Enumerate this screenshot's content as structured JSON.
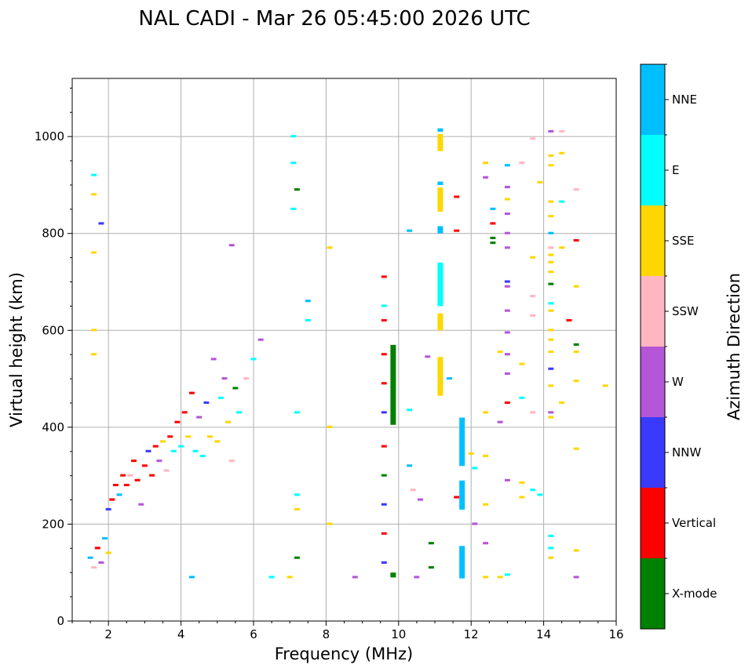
{
  "chart_data": {
    "type": "scatter",
    "title": "NAL CADI - Mar 26 05:45:00 2026 UTC",
    "xlabel": "Frequency (MHz)",
    "ylabel": "Virtual height (km)",
    "xlim": [
      1,
      16
    ],
    "ylim": [
      0,
      1120
    ],
    "xticks": [
      2,
      4,
      6,
      8,
      10,
      12,
      14,
      16
    ],
    "yticks": [
      0,
      200,
      400,
      600,
      800,
      1000
    ],
    "grid": true,
    "colorbar": {
      "label": "Azimuth Direction",
      "categories": [
        {
          "name": "X-mode",
          "color": "#008000"
        },
        {
          "name": "Vertical",
          "color": "#ff0000"
        },
        {
          "name": "NNW",
          "color": "#3a3aff"
        },
        {
          "name": "W",
          "color": "#b556d8"
        },
        {
          "name": "SSW",
          "color": "#ffb6c1"
        },
        {
          "name": "SSE",
          "color": "#ffd700"
        },
        {
          "name": "E",
          "color": "#00ffff"
        },
        {
          "name": "NNE",
          "color": "#00bfff"
        }
      ]
    },
    "cell_size": {
      "freq_mhz": 0.05,
      "height_km": 5
    },
    "columns": [
      {
        "name": "X-mode",
        "freq": 9.85,
        "h0": 405,
        "h1": 570
      },
      {
        "name": "X-mode",
        "freq": 9.85,
        "h0": 90,
        "h1": 100
      },
      {
        "name": "NNE",
        "freq": 11.75,
        "h0": 88,
        "h1": 155
      },
      {
        "name": "NNE",
        "freq": 11.75,
        "h0": 230,
        "h1": 290
      },
      {
        "name": "NNE",
        "freq": 11.75,
        "h0": 320,
        "h1": 420
      },
      {
        "name": "E",
        "freq": 11.15,
        "h0": 650,
        "h1": 740
      },
      {
        "name": "SSE",
        "freq": 11.15,
        "h0": 465,
        "h1": 545
      },
      {
        "name": "SSE",
        "freq": 11.15,
        "h0": 600,
        "h1": 635
      },
      {
        "name": "SSE",
        "freq": 11.15,
        "h0": 845,
        "h1": 895
      },
      {
        "name": "SSE",
        "freq": 11.15,
        "h0": 970,
        "h1": 1005
      },
      {
        "name": "NNE",
        "freq": 11.15,
        "h0": 800,
        "h1": 815
      },
      {
        "name": "NNE",
        "freq": 11.15,
        "h0": 900,
        "h1": 907
      },
      {
        "name": "NNE",
        "freq": 11.15,
        "h0": 1010,
        "h1": 1017
      }
    ],
    "trace_points": [
      {
        "freq": 1.5,
        "height": 130,
        "name": "NNE"
      },
      {
        "freq": 1.6,
        "height": 110,
        "name": "SSW"
      },
      {
        "freq": 1.7,
        "height": 150,
        "name": "Vertical"
      },
      {
        "freq": 1.8,
        "height": 120,
        "name": "W"
      },
      {
        "freq": 1.9,
        "height": 170,
        "name": "NNE"
      },
      {
        "freq": 2.0,
        "height": 140,
        "name": "SSE"
      },
      {
        "freq": 2.0,
        "height": 230,
        "name": "NNW"
      },
      {
        "freq": 2.1,
        "height": 250,
        "name": "Vertical"
      },
      {
        "freq": 2.2,
        "height": 280,
        "name": "Vertical"
      },
      {
        "freq": 2.3,
        "height": 260,
        "name": "NNE"
      },
      {
        "freq": 2.4,
        "height": 300,
        "name": "Vertical"
      },
      {
        "freq": 2.5,
        "height": 280,
        "name": "Vertical"
      },
      {
        "freq": 2.6,
        "height": 300,
        "name": "SSW"
      },
      {
        "freq": 2.7,
        "height": 330,
        "name": "Vertical"
      },
      {
        "freq": 2.8,
        "height": 290,
        "name": "Vertical"
      },
      {
        "freq": 2.9,
        "height": 240,
        "name": "W"
      },
      {
        "freq": 3.0,
        "height": 320,
        "name": "Vertical"
      },
      {
        "freq": 3.1,
        "height": 350,
        "name": "NNW"
      },
      {
        "freq": 3.2,
        "height": 300,
        "name": "Vertical"
      },
      {
        "freq": 3.3,
        "height": 360,
        "name": "Vertical"
      },
      {
        "freq": 3.4,
        "height": 330,
        "name": "W"
      },
      {
        "freq": 3.5,
        "height": 370,
        "name": "SSE"
      },
      {
        "freq": 3.6,
        "height": 310,
        "name": "SSW"
      },
      {
        "freq": 3.7,
        "height": 380,
        "name": "Vertical"
      },
      {
        "freq": 3.8,
        "height": 350,
        "name": "E"
      },
      {
        "freq": 3.9,
        "height": 410,
        "name": "Vertical"
      },
      {
        "freq": 4.0,
        "height": 360,
        "name": "E"
      },
      {
        "freq": 4.1,
        "height": 430,
        "name": "Vertical"
      },
      {
        "freq": 4.2,
        "height": 380,
        "name": "SSE"
      },
      {
        "freq": 4.3,
        "height": 470,
        "name": "Vertical"
      },
      {
        "freq": 4.4,
        "height": 350,
        "name": "E"
      },
      {
        "freq": 4.5,
        "height": 420,
        "name": "W"
      },
      {
        "freq": 4.6,
        "height": 340,
        "name": "E"
      },
      {
        "freq": 4.7,
        "height": 450,
        "name": "NNW"
      },
      {
        "freq": 4.8,
        "height": 380,
        "name": "SSE"
      },
      {
        "freq": 4.9,
        "height": 540,
        "name": "W"
      },
      {
        "freq": 5.0,
        "height": 370,
        "name": "SSE"
      },
      {
        "freq": 5.1,
        "height": 460,
        "name": "E"
      },
      {
        "freq": 5.2,
        "height": 500,
        "name": "W"
      },
      {
        "freq": 5.3,
        "height": 410,
        "name": "SSE"
      },
      {
        "freq": 5.4,
        "height": 330,
        "name": "SSW"
      },
      {
        "freq": 5.5,
        "height": 480,
        "name": "X-mode"
      },
      {
        "freq": 5.6,
        "height": 430,
        "name": "E"
      },
      {
        "freq": 5.8,
        "height": 500,
        "name": "SSW"
      },
      {
        "freq": 6.0,
        "height": 540,
        "name": "E"
      },
      {
        "freq": 6.2,
        "height": 580,
        "name": "W"
      }
    ],
    "scattered_echoes": [
      {
        "freq": 1.6,
        "height": 920,
        "name": "E"
      },
      {
        "freq": 1.6,
        "height": 880,
        "name": "SSE"
      },
      {
        "freq": 1.6,
        "height": 760,
        "name": "SSE"
      },
      {
        "freq": 1.6,
        "height": 600,
        "name": "SSE"
      },
      {
        "freq": 1.6,
        "height": 550,
        "name": "SSE"
      },
      {
        "freq": 1.8,
        "height": 820,
        "name": "NNW"
      },
      {
        "freq": 5.4,
        "height": 775,
        "name": "W"
      },
      {
        "freq": 7.1,
        "height": 1000,
        "name": "E"
      },
      {
        "freq": 7.1,
        "height": 945,
        "name": "E"
      },
      {
        "freq": 7.1,
        "height": 850,
        "name": "E"
      },
      {
        "freq": 7.2,
        "height": 890,
        "name": "X-mode"
      },
      {
        "freq": 7.5,
        "height": 660,
        "name": "NNE"
      },
      {
        "freq": 7.5,
        "height": 620,
        "name": "E"
      },
      {
        "freq": 7.2,
        "height": 430,
        "name": "E"
      },
      {
        "freq": 7.2,
        "height": 260,
        "name": "E"
      },
      {
        "freq": 7.2,
        "height": 230,
        "name": "SSE"
      },
      {
        "freq": 7.2,
        "height": 130,
        "name": "X-mode"
      },
      {
        "freq": 7.0,
        "height": 90,
        "name": "SSE"
      },
      {
        "freq": 6.5,
        "height": 90,
        "name": "E"
      },
      {
        "freq": 4.3,
        "height": 90,
        "name": "NNE"
      },
      {
        "freq": 8.1,
        "height": 770,
        "name": "SSE"
      },
      {
        "freq": 8.1,
        "height": 400,
        "name": "SSE"
      },
      {
        "freq": 8.1,
        "height": 200,
        "name": "SSE"
      },
      {
        "freq": 8.8,
        "height": 90,
        "name": "W"
      },
      {
        "freq": 9.6,
        "height": 710,
        "name": "Vertical"
      },
      {
        "freq": 9.6,
        "height": 650,
        "name": "E"
      },
      {
        "freq": 9.6,
        "height": 620,
        "name": "Vertical"
      },
      {
        "freq": 9.6,
        "height": 550,
        "name": "Vertical"
      },
      {
        "freq": 9.6,
        "height": 490,
        "name": "Vertical"
      },
      {
        "freq": 9.6,
        "height": 430,
        "name": "NNW"
      },
      {
        "freq": 9.6,
        "height": 360,
        "name": "Vertical"
      },
      {
        "freq": 9.6,
        "height": 300,
        "name": "X-mode"
      },
      {
        "freq": 9.6,
        "height": 240,
        "name": "NNW"
      },
      {
        "freq": 9.6,
        "height": 180,
        "name": "Vertical"
      },
      {
        "freq": 9.6,
        "height": 120,
        "name": "NNW"
      },
      {
        "freq": 10.3,
        "height": 805,
        "name": "NNE"
      },
      {
        "freq": 10.3,
        "height": 435,
        "name": "E"
      },
      {
        "freq": 10.3,
        "height": 320,
        "name": "NNE"
      },
      {
        "freq": 10.4,
        "height": 270,
        "name": "SSW"
      },
      {
        "freq": 10.6,
        "height": 250,
        "name": "W"
      },
      {
        "freq": 10.8,
        "height": 545,
        "name": "W"
      },
      {
        "freq": 10.9,
        "height": 160,
        "name": "X-mode"
      },
      {
        "freq": 10.9,
        "height": 110,
        "name": "X-mode"
      },
      {
        "freq": 10.5,
        "height": 90,
        "name": "W"
      },
      {
        "freq": 11.4,
        "height": 500,
        "name": "NNE"
      },
      {
        "freq": 11.6,
        "height": 875,
        "name": "Vertical"
      },
      {
        "freq": 11.6,
        "height": 805,
        "name": "Vertical"
      },
      {
        "freq": 11.6,
        "height": 255,
        "name": "Vertical"
      },
      {
        "freq": 12.0,
        "height": 345,
        "name": "SSE"
      },
      {
        "freq": 12.1,
        "height": 315,
        "name": "E"
      },
      {
        "freq": 12.1,
        "height": 200,
        "name": "W"
      },
      {
        "freq": 12.4,
        "height": 945,
        "name": "SSE"
      },
      {
        "freq": 12.4,
        "height": 915,
        "name": "W"
      },
      {
        "freq": 12.4,
        "height": 430,
        "name": "SSE"
      },
      {
        "freq": 12.4,
        "height": 340,
        "name": "SSE"
      },
      {
        "freq": 12.4,
        "height": 240,
        "name": "SSE"
      },
      {
        "freq": 12.4,
        "height": 160,
        "name": "W"
      },
      {
        "freq": 12.4,
        "height": 90,
        "name": "SSE"
      },
      {
        "freq": 12.6,
        "height": 850,
        "name": "NNE"
      },
      {
        "freq": 12.6,
        "height": 820,
        "name": "Vertical"
      },
      {
        "freq": 12.6,
        "height": 790,
        "name": "X-mode"
      },
      {
        "freq": 12.6,
        "height": 780,
        "name": "X-mode"
      },
      {
        "freq": 12.8,
        "height": 555,
        "name": "SSE"
      },
      {
        "freq": 12.8,
        "height": 410,
        "name": "W"
      },
      {
        "freq": 12.8,
        "height": 90,
        "name": "SSE"
      },
      {
        "freq": 13.0,
        "height": 940,
        "name": "NNE"
      },
      {
        "freq": 13.0,
        "height": 895,
        "name": "W"
      },
      {
        "freq": 13.0,
        "height": 870,
        "name": "SSE"
      },
      {
        "freq": 13.0,
        "height": 840,
        "name": "W"
      },
      {
        "freq": 13.0,
        "height": 800,
        "name": "W"
      },
      {
        "freq": 13.0,
        "height": 770,
        "name": "W"
      },
      {
        "freq": 13.0,
        "height": 700,
        "name": "NNW"
      },
      {
        "freq": 13.0,
        "height": 690,
        "name": "W"
      },
      {
        "freq": 13.0,
        "height": 640,
        "name": "W"
      },
      {
        "freq": 13.0,
        "height": 595,
        "name": "W"
      },
      {
        "freq": 13.0,
        "height": 550,
        "name": "W"
      },
      {
        "freq": 13.0,
        "height": 510,
        "name": "W"
      },
      {
        "freq": 13.0,
        "height": 450,
        "name": "Vertical"
      },
      {
        "freq": 13.0,
        "height": 290,
        "name": "W"
      },
      {
        "freq": 13.0,
        "height": 95,
        "name": "E"
      },
      {
        "freq": 13.4,
        "height": 945,
        "name": "SSW"
      },
      {
        "freq": 13.4,
        "height": 530,
        "name": "SSE"
      },
      {
        "freq": 13.4,
        "height": 460,
        "name": "E"
      },
      {
        "freq": 13.4,
        "height": 285,
        "name": "SSE"
      },
      {
        "freq": 13.4,
        "height": 255,
        "name": "SSE"
      },
      {
        "freq": 13.7,
        "height": 995,
        "name": "SSW"
      },
      {
        "freq": 13.7,
        "height": 750,
        "name": "SSE"
      },
      {
        "freq": 13.7,
        "height": 670,
        "name": "SSW"
      },
      {
        "freq": 13.7,
        "height": 630,
        "name": "SSW"
      },
      {
        "freq": 13.7,
        "height": 430,
        "name": "SSW"
      },
      {
        "freq": 13.7,
        "height": 270,
        "name": "E"
      },
      {
        "freq": 13.9,
        "height": 905,
        "name": "SSE"
      },
      {
        "freq": 13.9,
        "height": 260,
        "name": "E"
      },
      {
        "freq": 14.2,
        "height": 1010,
        "name": "W"
      },
      {
        "freq": 14.2,
        "height": 960,
        "name": "SSE"
      },
      {
        "freq": 14.2,
        "height": 940,
        "name": "SSE"
      },
      {
        "freq": 14.2,
        "height": 865,
        "name": "SSE"
      },
      {
        "freq": 14.2,
        "height": 835,
        "name": "SSE"
      },
      {
        "freq": 14.2,
        "height": 800,
        "name": "NNE"
      },
      {
        "freq": 14.2,
        "height": 770,
        "name": "SSW"
      },
      {
        "freq": 14.2,
        "height": 755,
        "name": "SSE"
      },
      {
        "freq": 14.2,
        "height": 740,
        "name": "SSE"
      },
      {
        "freq": 14.2,
        "height": 720,
        "name": "SSE"
      },
      {
        "freq": 14.2,
        "height": 695,
        "name": "X-mode"
      },
      {
        "freq": 14.2,
        "height": 655,
        "name": "E"
      },
      {
        "freq": 14.2,
        "height": 640,
        "name": "SSE"
      },
      {
        "freq": 14.2,
        "height": 600,
        "name": "SSE"
      },
      {
        "freq": 14.2,
        "height": 580,
        "name": "SSE"
      },
      {
        "freq": 14.2,
        "height": 555,
        "name": "SSE"
      },
      {
        "freq": 14.2,
        "height": 520,
        "name": "NNW"
      },
      {
        "freq": 14.2,
        "height": 485,
        "name": "SSE"
      },
      {
        "freq": 14.2,
        "height": 430,
        "name": "W"
      },
      {
        "freq": 14.2,
        "height": 420,
        "name": "SSE"
      },
      {
        "freq": 14.2,
        "height": 175,
        "name": "E"
      },
      {
        "freq": 14.2,
        "height": 150,
        "name": "E"
      },
      {
        "freq": 14.2,
        "height": 130,
        "name": "SSE"
      },
      {
        "freq": 14.5,
        "height": 1010,
        "name": "SSW"
      },
      {
        "freq": 14.5,
        "height": 965,
        "name": "SSE"
      },
      {
        "freq": 14.5,
        "height": 865,
        "name": "E"
      },
      {
        "freq": 14.5,
        "height": 770,
        "name": "SSE"
      },
      {
        "freq": 14.5,
        "height": 450,
        "name": "SSE"
      },
      {
        "freq": 14.7,
        "height": 620,
        "name": "Vertical"
      },
      {
        "freq": 14.9,
        "height": 890,
        "name": "SSW"
      },
      {
        "freq": 14.9,
        "height": 785,
        "name": "Vertical"
      },
      {
        "freq": 14.9,
        "height": 690,
        "name": "SSE"
      },
      {
        "freq": 14.9,
        "height": 570,
        "name": "X-mode"
      },
      {
        "freq": 14.9,
        "height": 555,
        "name": "SSE"
      },
      {
        "freq": 14.9,
        "height": 495,
        "name": "SSE"
      },
      {
        "freq": 14.9,
        "height": 355,
        "name": "SSE"
      },
      {
        "freq": 14.9,
        "height": 145,
        "name": "SSE"
      },
      {
        "freq": 14.9,
        "height": 90,
        "name": "W"
      },
      {
        "freq": 15.7,
        "height": 485,
        "name": "SSE"
      }
    ]
  }
}
